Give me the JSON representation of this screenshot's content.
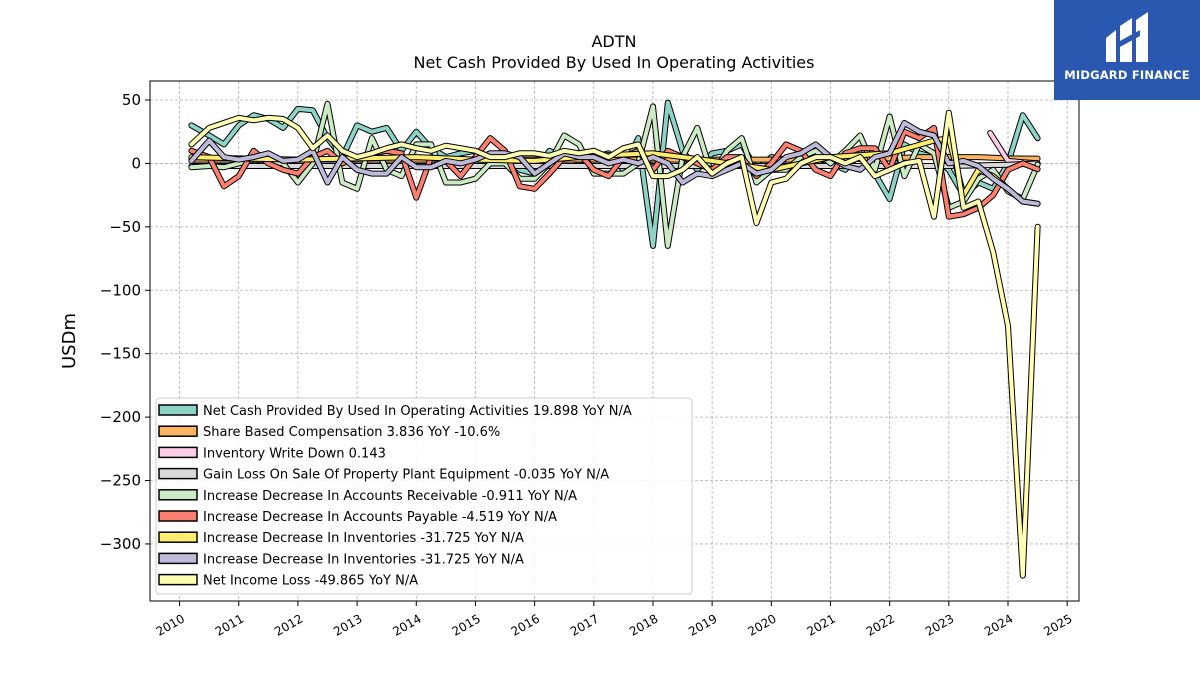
{
  "logo": {
    "text": "MIDGARD FINANCE",
    "icon": "midgard-logo-icon",
    "color": "#2a57b0"
  },
  "chart_data": {
    "type": "line",
    "title": "ADTN",
    "subtitle": "Net Cash Provided By Used In Operating Activities",
    "xlabel": "",
    "ylabel": "USDm",
    "xlim": [
      2009.5,
      2025.2
    ],
    "ylim": [
      -345,
      65
    ],
    "grid": true,
    "legend_position": "lower-left",
    "x_ticks": [
      "2010",
      "2011",
      "2012",
      "2013",
      "2014",
      "2015",
      "2016",
      "2017",
      "2018",
      "2019",
      "2020",
      "2021",
      "2022",
      "2023",
      "2024",
      "2025"
    ],
    "y_ticks": [
      50,
      0,
      -50,
      -100,
      -150,
      -200,
      -250,
      -300
    ],
    "y_tick_labels": [
      "50",
      "0",
      "−50",
      "−100",
      "−150",
      "−200",
      "−250",
      "−300"
    ],
    "series": [
      {
        "name": "Net Cash Provided By Used In Operating Activities",
        "legend": "Net Cash Provided By Used In Operating Activities  19.898 YoY N/A",
        "color": "#8dd3c7",
        "x": [
          2010.2,
          2010.5,
          2010.75,
          2011.0,
          2011.25,
          2011.5,
          2011.75,
          2012.0,
          2012.25,
          2012.5,
          2012.75,
          2013.0,
          2013.25,
          2013.5,
          2013.75,
          2014.0,
          2014.25,
          2014.5,
          2014.75,
          2015.0,
          2015.25,
          2015.5,
          2015.75,
          2016.0,
          2016.25,
          2016.5,
          2016.75,
          2017.0,
          2017.25,
          2017.5,
          2017.75,
          2018.0,
          2018.25,
          2018.5,
          2018.75,
          2019.0,
          2019.25,
          2019.5,
          2019.75,
          2020.0,
          2020.25,
          2020.5,
          2020.75,
          2021.0,
          2021.25,
          2021.5,
          2021.75,
          2022.0,
          2022.25,
          2022.5,
          2022.75,
          2023.0,
          2023.25,
          2023.5,
          2023.75,
          2024.0,
          2024.25,
          2024.5
        ],
        "y": [
          30,
          22,
          15,
          30,
          38,
          35,
          28,
          43,
          42,
          20,
          5,
          30,
          25,
          28,
          10,
          25,
          12,
          5,
          8,
          10,
          5,
          8,
          -5,
          -8,
          10,
          5,
          2,
          5,
          8,
          -5,
          20,
          -65,
          48,
          10,
          -5,
          8,
          10,
          15,
          -5,
          5,
          3,
          8,
          5,
          0,
          -5,
          8,
          -8,
          -28,
          15,
          8,
          5,
          -5,
          -25,
          -15,
          -20,
          0,
          38,
          19.898
        ]
      },
      {
        "name": "Share Based Compensation",
        "legend": "Share Based Compensation  3.836 YoY -10.6%",
        "color": "#fdb462",
        "x": [
          2010.2,
          2011.0,
          2012.0,
          2013.0,
          2014.0,
          2015.0,
          2016.0,
          2017.0,
          2018.0,
          2019.0,
          2020.0,
          2021.0,
          2022.0,
          2022.5,
          2023.0,
          2023.5,
          2024.0,
          2024.5
        ],
        "y": [
          3,
          3,
          3,
          3,
          3,
          3,
          3,
          3,
          3,
          3,
          3,
          3,
          4,
          5,
          5,
          5,
          4,
          3.836
        ]
      },
      {
        "name": "Inventory Write Down",
        "legend": "Inventory Write Down  0.143",
        "color": "#fccde5",
        "x": [
          2023.7,
          2024.0,
          2024.25,
          2024.5
        ],
        "y": [
          24,
          2,
          1,
          0.143
        ]
      },
      {
        "name": "Gain Loss On Sale Of Property Plant Equipment",
        "legend": "Gain Loss On Sale Of Property Plant Equipment  -0.035 YoY N/A",
        "color": "#d9d9d9",
        "x": [
          2010.2,
          2011.0,
          2012.0,
          2013.0,
          2014.0,
          2015.0,
          2016.0,
          2017.0,
          2018.0,
          2019.0,
          2020.0,
          2021.0,
          2022.0,
          2023.0,
          2024.0,
          2024.5
        ],
        "y": [
          -2,
          -2,
          -2,
          -2,
          -2,
          -2,
          -2,
          -2,
          -2,
          -2,
          -2,
          -2,
          -2,
          -2,
          -1,
          -0.035
        ]
      },
      {
        "name": "Increase Decrease In Accounts Receivable",
        "legend": "Increase Decrease In Accounts Receivable  -0.911 YoY N/A",
        "color": "#ccebc5",
        "x": [
          2010.2,
          2010.5,
          2010.75,
          2011.0,
          2011.25,
          2011.5,
          2011.75,
          2012.0,
          2012.25,
          2012.5,
          2012.75,
          2013.0,
          2013.25,
          2013.5,
          2013.75,
          2014.0,
          2014.25,
          2014.5,
          2014.75,
          2015.0,
          2015.25,
          2015.5,
          2015.75,
          2016.0,
          2016.25,
          2016.5,
          2016.75,
          2017.0,
          2017.25,
          2017.5,
          2017.75,
          2018.0,
          2018.25,
          2018.5,
          2018.75,
          2019.0,
          2019.25,
          2019.5,
          2019.75,
          2020.0,
          2020.25,
          2020.5,
          2020.75,
          2021.0,
          2021.25,
          2021.5,
          2021.75,
          2022.0,
          2022.25,
          2022.5,
          2022.75,
          2023.0,
          2023.25,
          2023.5,
          2023.75,
          2024.0,
          2024.25,
          2024.5
        ],
        "y": [
          -3,
          -2,
          -3,
          0,
          3,
          2,
          0,
          -15,
          0,
          47,
          -15,
          -20,
          20,
          -5,
          -10,
          15,
          15,
          -15,
          -15,
          -12,
          0,
          0,
          -12,
          -12,
          0,
          22,
          15,
          -8,
          -8,
          -8,
          0,
          45,
          -65,
          5,
          28,
          -10,
          10,
          20,
          -15,
          -5,
          -5,
          5,
          10,
          0,
          10,
          22,
          -5,
          37,
          -10,
          15,
          8,
          -35,
          -30,
          -12,
          -5,
          -22,
          -28,
          -0.911
        ]
      },
      {
        "name": "Increase Decrease In Accounts Payable",
        "legend": "Increase Decrease In Accounts Payable  -4.519 YoY N/A",
        "color": "#fb8072",
        "x": [
          2010.2,
          2010.5,
          2010.75,
          2011.0,
          2011.25,
          2011.5,
          2011.75,
          2012.0,
          2012.25,
          2012.5,
          2012.75,
          2013.0,
          2013.25,
          2013.5,
          2013.75,
          2014.0,
          2014.25,
          2014.5,
          2014.75,
          2015.0,
          2015.25,
          2015.5,
          2015.75,
          2016.0,
          2016.25,
          2016.5,
          2016.75,
          2017.0,
          2017.25,
          2017.5,
          2017.75,
          2018.0,
          2018.25,
          2018.5,
          2018.75,
          2019.0,
          2019.25,
          2019.5,
          2019.75,
          2020.0,
          2020.25,
          2020.5,
          2020.75,
          2021.0,
          2021.25,
          2021.5,
          2021.75,
          2022.0,
          2022.25,
          2022.5,
          2022.75,
          2023.0,
          2023.25,
          2023.5,
          2023.75,
          2024.0,
          2024.25,
          2024.5
        ],
        "y": [
          10,
          5,
          -18,
          -10,
          10,
          0,
          -5,
          -8,
          5,
          10,
          0,
          5,
          8,
          10,
          8,
          -27,
          5,
          2,
          -10,
          5,
          20,
          10,
          -18,
          -20,
          -8,
          5,
          8,
          -5,
          -10,
          5,
          10,
          -5,
          10,
          5,
          0,
          -5,
          5,
          5,
          -10,
          0,
          15,
          10,
          -5,
          -10,
          8,
          12,
          12,
          -5,
          25,
          20,
          28,
          -42,
          -40,
          -35,
          -25,
          -5,
          0,
          -4.519
        ]
      },
      {
        "name": "Increase Decrease In Inventories",
        "legend": "Increase Decrease In Inventories  -31.725 YoY N/A",
        "color": "#ffed6f",
        "x": [
          2010.2,
          2011.0,
          2012.0,
          2013.0,
          2014.0,
          2015.0,
          2016.0,
          2017.0,
          2018.0,
          2019.0,
          2020.0,
          2021.0,
          2022.0,
          2022.75,
          2023.0,
          2023.25,
          2023.5,
          2023.75,
          2024.0,
          2024.25,
          2024.5
        ],
        "y": [
          5,
          4,
          3,
          4,
          5,
          3,
          2,
          6,
          8,
          2,
          -5,
          5,
          8,
          18,
          20,
          -25,
          -5,
          -10,
          -20,
          -30,
          -31.725
        ]
      },
      {
        "name": "Increase Decrease In Inventories",
        "legend": "Increase Decrease In Inventories  -31.725 YoY N/A",
        "color": "#bebada",
        "x": [
          2010.2,
          2010.5,
          2010.75,
          2011.0,
          2011.25,
          2011.5,
          2011.75,
          2012.0,
          2012.25,
          2012.5,
          2012.75,
          2013.0,
          2013.25,
          2013.5,
          2013.75,
          2014.0,
          2014.25,
          2014.5,
          2014.75,
          2015.0,
          2015.25,
          2015.5,
          2015.75,
          2016.0,
          2016.25,
          2016.5,
          2016.75,
          2017.0,
          2017.25,
          2017.5,
          2017.75,
          2018.0,
          2018.25,
          2018.5,
          2018.75,
          2019.0,
          2019.25,
          2019.5,
          2019.75,
          2020.0,
          2020.25,
          2020.5,
          2020.75,
          2021.0,
          2021.25,
          2021.5,
          2021.75,
          2022.0,
          2022.25,
          2022.5,
          2022.75,
          2023.0,
          2023.25,
          2023.5,
          2023.75,
          2024.0,
          2024.25,
          2024.5
        ],
        "y": [
          2,
          18,
          5,
          3,
          5,
          8,
          2,
          3,
          10,
          -15,
          5,
          -5,
          -8,
          -8,
          5,
          -3,
          -3,
          2,
          0,
          3,
          8,
          8,
          5,
          -8,
          0,
          8,
          5,
          5,
          0,
          3,
          0,
          5,
          0,
          -15,
          -8,
          -10,
          -5,
          0,
          -8,
          -5,
          5,
          8,
          15,
          5,
          -2,
          -5,
          5,
          8,
          32,
          25,
          22,
          0,
          2,
          -2,
          -12,
          -20,
          -30,
          -31.725
        ]
      },
      {
        "name": "Net Income Loss",
        "legend": "Net Income Loss  -49.865 YoY N/A",
        "color": "#ffffb3",
        "x": [
          2010.2,
          2010.5,
          2010.75,
          2011.0,
          2011.25,
          2011.5,
          2011.75,
          2012.0,
          2012.25,
          2012.5,
          2012.75,
          2013.0,
          2013.25,
          2013.5,
          2013.75,
          2014.0,
          2014.25,
          2014.5,
          2014.75,
          2015.0,
          2015.25,
          2015.5,
          2015.75,
          2016.0,
          2016.25,
          2016.5,
          2016.75,
          2017.0,
          2017.25,
          2017.5,
          2017.75,
          2018.0,
          2018.25,
          2018.5,
          2018.75,
          2019.0,
          2019.25,
          2019.5,
          2019.75,
          2020.0,
          2020.25,
          2020.5,
          2020.75,
          2021.0,
          2021.25,
          2021.5,
          2021.75,
          2022.0,
          2022.25,
          2022.5,
          2022.75,
          2023.0,
          2023.25,
          2023.5,
          2023.75,
          2024.0,
          2024.25,
          2024.5
        ],
        "y": [
          15,
          28,
          32,
          36,
          34,
          36,
          35,
          28,
          12,
          22,
          10,
          5,
          8,
          12,
          15,
          12,
          10,
          14,
          12,
          10,
          5,
          5,
          8,
          8,
          6,
          10,
          8,
          10,
          5,
          12,
          15,
          -10,
          -10,
          -5,
          5,
          -8,
          0,
          5,
          -47,
          -15,
          -12,
          0,
          5,
          5,
          0,
          5,
          -10,
          -5,
          0,
          2,
          -42,
          40,
          -35,
          -30,
          -70,
          -128,
          -325,
          -49.865
        ]
      }
    ]
  }
}
